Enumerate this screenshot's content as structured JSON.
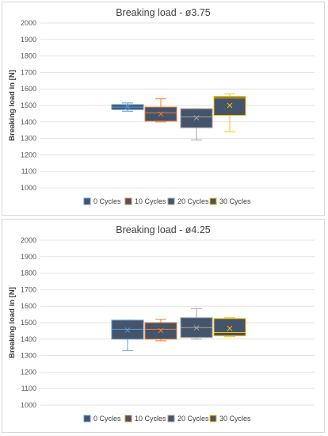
{
  "chart_data": [
    {
      "type": "box",
      "title": "Breaking load - ø3.75",
      "ylabel": "Breaking load in [N]",
      "ylim": [
        1000,
        2000
      ],
      "yticks": [
        "1000",
        "1100",
        "1200",
        "1300",
        "1400",
        "1500",
        "1600",
        "1700",
        "1800",
        "1900",
        "2000"
      ],
      "grid": true,
      "legend_position": "bottom",
      "series": [
        {
          "name": "0 Cycles",
          "fill": "#44546a",
          "stroke": "#5b9bd5",
          "min": 1465,
          "q1": 1475,
          "median": 1490,
          "q3": 1505,
          "max": 1515,
          "mean": 1492
        },
        {
          "name": "10 Cycles",
          "fill": "#44546a",
          "stroke": "#ed7d31",
          "min": 1400,
          "q1": 1405,
          "median": 1455,
          "q3": 1490,
          "max": 1540,
          "mean": 1448
        },
        {
          "name": "20 Cycles",
          "fill": "#44546a",
          "stroke": "#a5a5a5",
          "min": 1290,
          "q1": 1365,
          "median": 1430,
          "q3": 1480,
          "max": 1480,
          "mean": 1425
        },
        {
          "name": "30 Cycles",
          "fill": "#44546a",
          "stroke": "#ffc000",
          "min": 1340,
          "q1": 1440,
          "median": 1545,
          "q3": 1555,
          "max": 1570,
          "mean": 1500
        }
      ]
    },
    {
      "type": "box",
      "title": "Breaking load - ø4.25",
      "ylabel": "Breaking load in [N]",
      "ylim": [
        1000,
        2000
      ],
      "yticks": [
        "1000",
        "1100",
        "1200",
        "1300",
        "1400",
        "1500",
        "1600",
        "1700",
        "1800",
        "1900",
        "2000"
      ],
      "grid": true,
      "legend_position": "bottom",
      "series": [
        {
          "name": "0 Cycles",
          "fill": "#44546a",
          "stroke": "#5b9bd5",
          "min": 1330,
          "q1": 1400,
          "median": 1460,
          "q3": 1515,
          "max": 1515,
          "mean": 1455
        },
        {
          "name": "10 Cycles",
          "fill": "#44546a",
          "stroke": "#ed7d31",
          "min": 1390,
          "q1": 1400,
          "median": 1460,
          "q3": 1500,
          "max": 1520,
          "mean": 1452
        },
        {
          "name": "20 Cycles",
          "fill": "#44546a",
          "stroke": "#a5a5a5",
          "min": 1400,
          "q1": 1410,
          "median": 1470,
          "q3": 1530,
          "max": 1585,
          "mean": 1468
        },
        {
          "name": "30 Cycles",
          "fill": "#44546a",
          "stroke": "#ffc000",
          "min": 1415,
          "q1": 1420,
          "median": 1440,
          "q3": 1525,
          "max": 1530,
          "mean": 1465
        }
      ]
    }
  ]
}
